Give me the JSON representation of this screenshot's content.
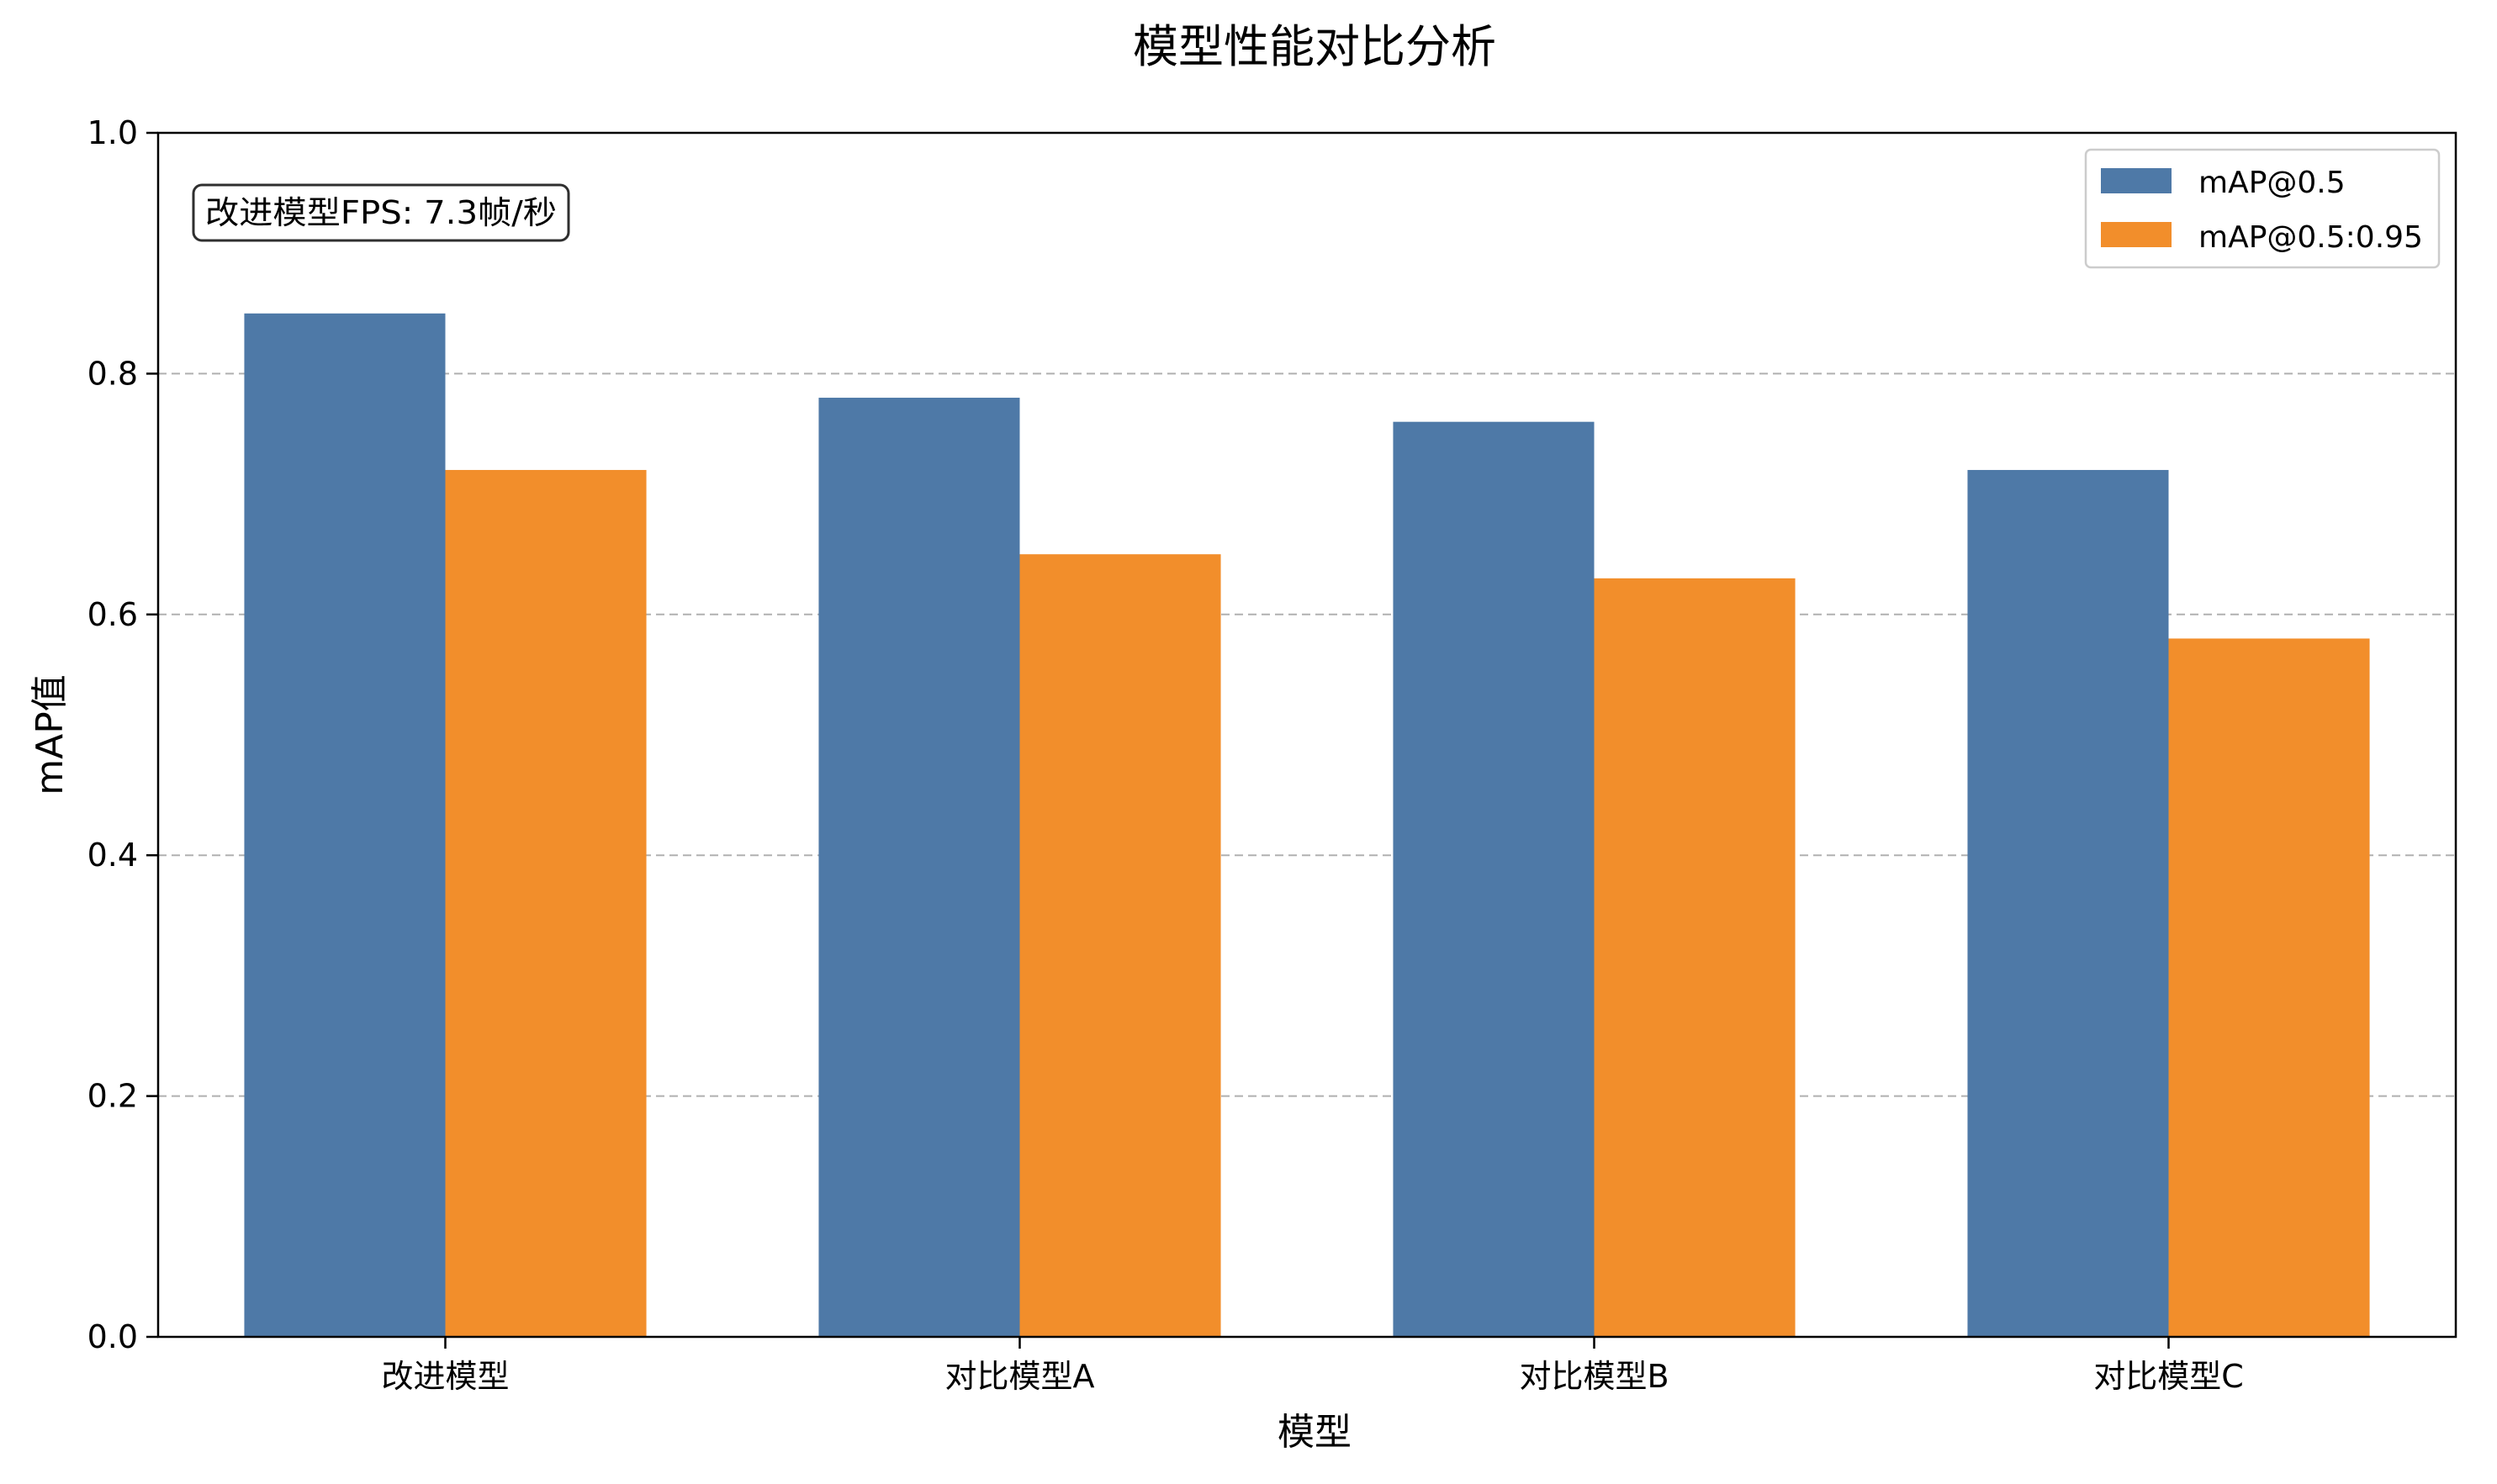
{
  "chart_data": {
    "type": "bar",
    "title": "模型性能对比分析",
    "xlabel": "模型",
    "ylabel": "mAP值",
    "categories": [
      "改进模型",
      "对比模型A",
      "对比模型B",
      "对比模型C"
    ],
    "series": [
      {
        "name": "mAP@0.5",
        "color": "#4e79a7",
        "values": [
          0.85,
          0.78,
          0.76,
          0.72
        ]
      },
      {
        "name": "mAP@0.5:0.95",
        "color": "#f28e2b",
        "values": [
          0.72,
          0.65,
          0.63,
          0.58
        ]
      }
    ],
    "ylim": [
      0,
      1.0
    ],
    "yticks": [
      "0.0",
      "0.2",
      "0.4",
      "0.6",
      "0.8",
      "1.0"
    ],
    "grid": "y-dashed",
    "legend_position": "top-right",
    "annotation": "改进模型FPS: 7.3帧/秒"
  }
}
